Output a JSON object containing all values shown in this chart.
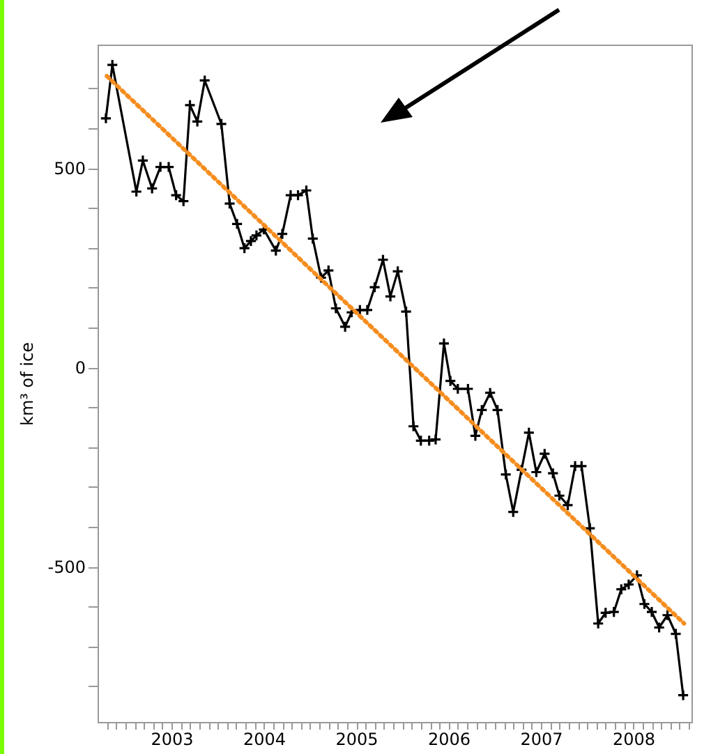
{
  "chart_data": {
    "type": "line",
    "ylabel": "km³ of ice",
    "xlim": [
      2002.2,
      2008.63
    ],
    "ylim": [
      -890,
      810
    ],
    "xticks": [
      {
        "value": 2002.3,
        "label": null
      },
      {
        "value": 2002.4,
        "label": null
      },
      {
        "value": 2002.5,
        "label": null
      },
      {
        "value": 2002.6,
        "label": null
      },
      {
        "value": 2002.7,
        "label": null
      },
      {
        "value": 2002.8,
        "label": null
      },
      {
        "value": 2002.9,
        "label": null
      },
      2003,
      {
        "value": 2003.1,
        "label": null
      },
      {
        "value": 2003.2,
        "label": null
      },
      {
        "value": 2003.3,
        "label": null
      },
      {
        "value": 2003.4,
        "label": null
      },
      {
        "value": 2003.5,
        "label": null
      },
      {
        "value": 2003.6,
        "label": null
      },
      {
        "value": 2003.7,
        "label": null
      },
      {
        "value": 2003.8,
        "label": null
      },
      {
        "value": 2003.9,
        "label": null
      },
      2004,
      {
        "value": 2004.1,
        "label": null
      },
      {
        "value": 2004.2,
        "label": null
      },
      {
        "value": 2004.3,
        "label": null
      },
      {
        "value": 2004.4,
        "label": null
      },
      {
        "value": 2004.5,
        "label": null
      },
      {
        "value": 2004.6,
        "label": null
      },
      {
        "value": 2004.7,
        "label": null
      },
      {
        "value": 2004.8,
        "label": null
      },
      {
        "value": 2004.9,
        "label": null
      },
      2005,
      {
        "value": 2005.1,
        "label": null
      },
      {
        "value": 2005.2,
        "label": null
      },
      {
        "value": 2005.3,
        "label": null
      },
      {
        "value": 2005.4,
        "label": null
      },
      {
        "value": 2005.5,
        "label": null
      },
      {
        "value": 2005.6,
        "label": null
      },
      {
        "value": 2005.7,
        "label": null
      },
      {
        "value": 2005.8,
        "label": null
      },
      {
        "value": 2005.9,
        "label": null
      },
      2006,
      {
        "value": 2006.1,
        "label": null
      },
      {
        "value": 2006.2,
        "label": null
      },
      {
        "value": 2006.3,
        "label": null
      },
      {
        "value": 2006.4,
        "label": null
      },
      {
        "value": 2006.5,
        "label": null
      },
      {
        "value": 2006.6,
        "label": null
      },
      {
        "value": 2006.7,
        "label": null
      },
      {
        "value": 2006.8,
        "label": null
      },
      {
        "value": 2006.9,
        "label": null
      },
      2007,
      {
        "value": 2007.1,
        "label": null
      },
      {
        "value": 2007.2,
        "label": null
      },
      {
        "value": 2007.3,
        "label": null
      },
      {
        "value": 2007.4,
        "label": null
      },
      {
        "value": 2007.5,
        "label": null
      },
      {
        "value": 2007.6,
        "label": null
      },
      {
        "value": 2007.7,
        "label": null
      },
      {
        "value": 2007.8,
        "label": null
      },
      {
        "value": 2007.9,
        "label": null
      },
      2008,
      {
        "value": 2008.1,
        "label": null
      },
      {
        "value": 2008.2,
        "label": null
      },
      {
        "value": 2008.3,
        "label": null
      },
      {
        "value": 2008.4,
        "label": null
      },
      {
        "value": 2008.5,
        "label": null
      },
      {
        "value": 2008.6,
        "label": null
      }
    ],
    "yticks": [
      {
        "value": -800,
        "label": null
      },
      {
        "value": -700,
        "label": null
      },
      {
        "value": -600,
        "label": null
      },
      -500,
      {
        "value": -400,
        "label": null
      },
      {
        "value": -300,
        "label": null
      },
      {
        "value": -200,
        "label": null
      },
      {
        "value": -100,
        "label": null
      },
      0,
      {
        "value": 100,
        "label": null
      },
      {
        "value": 200,
        "label": null
      },
      {
        "value": 300,
        "label": null
      },
      {
        "value": 400,
        "label": null
      },
      500,
      {
        "value": 600,
        "label": null
      },
      {
        "value": 700,
        "label": null
      }
    ],
    "grid": false,
    "series": [
      {
        "type": "line",
        "color": "#000000",
        "marker": "cross",
        "line_style": "solid",
        "x": [
          2002.29,
          2002.36,
          2002.62,
          2002.69,
          2002.79,
          2002.88,
          2002.97,
          2003.05,
          2003.13,
          2003.2,
          2003.28,
          2003.36,
          2003.54,
          2003.63,
          2003.71,
          2003.79,
          2003.86,
          2003.92,
          2004.0,
          2004.13,
          2004.2,
          2004.29,
          2004.37,
          2004.46,
          2004.53,
          2004.62,
          2004.7,
          2004.78,
          2004.88,
          2004.95,
          2005.04,
          2005.12,
          2005.2,
          2005.29,
          2005.37,
          2005.45,
          2005.54,
          2005.62,
          2005.7,
          2005.79,
          2005.86,
          2005.95,
          2006.02,
          2006.1,
          2006.21,
          2006.29,
          2006.36,
          2006.45,
          2006.53,
          2006.62,
          2006.7,
          2006.79,
          2006.87,
          2006.95,
          2007.04,
          2007.13,
          2007.2,
          2007.29,
          2007.37,
          2007.44,
          2007.53,
          2007.62,
          2007.7,
          2007.79,
          2007.87,
          2007.95,
          2008.04,
          2008.12,
          2008.2,
          2008.28,
          2008.37,
          2008.46,
          2008.54
        ],
        "values": [
          625,
          759,
          441,
          519,
          449,
          503,
          503,
          432,
          417,
          658,
          617,
          720,
          611,
          411,
          360,
          299,
          317,
          331,
          346,
          293,
          335,
          432,
          432,
          444,
          323,
          225,
          243,
          148,
          102,
          138,
          144,
          144,
          201,
          270,
          178,
          241,
          140,
          -148,
          -184,
          -184,
          -181,
          60,
          -34,
          -54,
          -54,
          -172,
          -107,
          -64,
          -107,
          -269,
          -363,
          -257,
          -164,
          -263,
          -217,
          -266,
          -322,
          -346,
          -248,
          -248,
          -404,
          -643,
          -616,
          -614,
          -557,
          -545,
          -522,
          -594,
          -614,
          -653,
          -622,
          -669,
          -823
        ]
      },
      {
        "type": "line",
        "color": "#f58d1f",
        "marker": "none",
        "line_style": "dotted",
        "x": [
          2002.3,
          2008.55
        ],
        "values": [
          731,
          -643
        ]
      }
    ]
  }
}
